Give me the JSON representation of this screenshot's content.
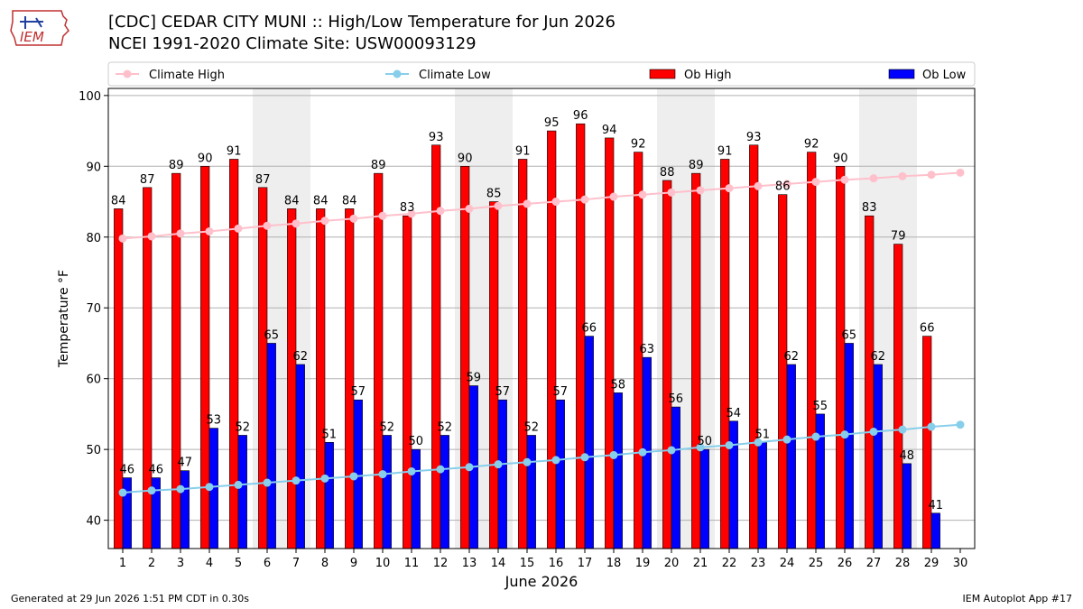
{
  "title": "[CDC] CEDAR CITY MUNI :: High/Low Temperature for Jun 2026",
  "subtitle": "NCEI 1991-2020 Climate Site: USW00093129",
  "logo_text": "IEM",
  "footer": {
    "left": "Generated at 29 Jun 2026 1:51 PM CDT in 0.30s",
    "right": "IEM Autoplot App #17"
  },
  "chart_data": {
    "type": "bar",
    "xlabel": "June 2026",
    "ylabel": "Temperature °F",
    "ylim": [
      36,
      101
    ],
    "yticks": [
      40,
      50,
      60,
      70,
      80,
      90,
      100
    ],
    "grid": true,
    "legend_position": "top",
    "categories": [
      "1",
      "2",
      "3",
      "4",
      "5",
      "6",
      "7",
      "8",
      "9",
      "10",
      "11",
      "12",
      "13",
      "14",
      "15",
      "16",
      "17",
      "18",
      "19",
      "20",
      "21",
      "22",
      "23",
      "24",
      "25",
      "26",
      "27",
      "28",
      "29",
      "30"
    ],
    "weekend_shading": [
      [
        6,
        7
      ],
      [
        13,
        14
      ],
      [
        20,
        21
      ],
      [
        27,
        28
      ]
    ],
    "series": [
      {
        "name": "Climate High",
        "kind": "line",
        "color": "#ffc0cb",
        "values": [
          79.8,
          80.1,
          80.5,
          80.8,
          81.2,
          81.6,
          81.9,
          82.3,
          82.6,
          83.0,
          83.3,
          83.7,
          84.0,
          84.4,
          84.7,
          85.0,
          85.3,
          85.7,
          86.0,
          86.3,
          86.6,
          86.9,
          87.2,
          87.5,
          87.8,
          88.1,
          88.3,
          88.6,
          88.8,
          89.1
        ]
      },
      {
        "name": "Climate Low",
        "kind": "line",
        "color": "#87ceeb",
        "values": [
          43.9,
          44.2,
          44.4,
          44.7,
          45.0,
          45.3,
          45.6,
          45.9,
          46.2,
          46.5,
          46.9,
          47.2,
          47.5,
          47.9,
          48.2,
          48.5,
          48.9,
          49.2,
          49.6,
          49.9,
          50.3,
          50.6,
          51.0,
          51.4,
          51.8,
          52.1,
          52.5,
          52.8,
          53.2,
          53.5
        ]
      },
      {
        "name": "Ob High",
        "kind": "bar",
        "color": "#ff0000",
        "values": [
          84,
          87,
          89,
          90,
          91,
          87,
          84,
          84,
          84,
          89,
          83,
          93,
          90,
          85,
          91,
          95,
          96,
          94,
          92,
          88,
          89,
          91,
          93,
          86,
          92,
          90,
          83,
          79,
          66,
          null
        ]
      },
      {
        "name": "Ob Low",
        "kind": "bar",
        "color": "#0000ff",
        "values": [
          46,
          46,
          47,
          53,
          52,
          65,
          62,
          51,
          57,
          52,
          50,
          52,
          59,
          57,
          52,
          57,
          66,
          58,
          63,
          56,
          50,
          54,
          51,
          62,
          55,
          65,
          62,
          48,
          41,
          null
        ]
      }
    ]
  }
}
